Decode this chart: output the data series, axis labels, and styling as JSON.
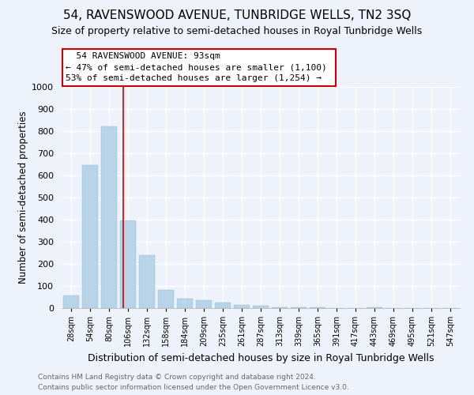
{
  "title": "54, RAVENSWOOD AVENUE, TUNBRIDGE WELLS, TN2 3SQ",
  "subtitle": "Size of property relative to semi-detached houses in Royal Tunbridge Wells",
  "bar_labels": [
    "28sqm",
    "54sqm",
    "80sqm",
    "106sqm",
    "132sqm",
    "158sqm",
    "184sqm",
    "209sqm",
    "235sqm",
    "261sqm",
    "287sqm",
    "313sqm",
    "339sqm",
    "365sqm",
    "391sqm",
    "417sqm",
    "443sqm",
    "469sqm",
    "495sqm",
    "521sqm",
    "547sqm"
  ],
  "bar_values": [
    58,
    648,
    820,
    397,
    240,
    82,
    42,
    37,
    25,
    13,
    10,
    4,
    3,
    2,
    1,
    0,
    2,
    0,
    0,
    0,
    1
  ],
  "bar_color": "#b8d4e8",
  "vline_x": 2.75,
  "vline_color": "#cc0000",
  "ylabel": "Number of semi-detached properties",
  "xlabel": "Distribution of semi-detached houses by size in Royal Tunbridge Wells",
  "ylim": [
    0,
    1000
  ],
  "yticks": [
    0,
    100,
    200,
    300,
    400,
    500,
    600,
    700,
    800,
    900,
    1000
  ],
  "annotation_title": "54 RAVENSWOOD AVENUE: 93sqm",
  "annotation_line1": "← 47% of semi-detached houses are smaller (1,100)",
  "annotation_line2": "53% of semi-detached houses are larger (1,254) →",
  "annotation_box_color": "#ffffff",
  "annotation_box_edge": "#cc0000",
  "footer_line1": "Contains HM Land Registry data © Crown copyright and database right 2024.",
  "footer_line2": "Contains public sector information licensed under the Open Government Licence v3.0.",
  "background_color": "#eef2fb",
  "grid_color": "#ffffff",
  "title_fontsize": 11,
  "subtitle_fontsize": 9,
  "xlabel_fontsize": 9,
  "ylabel_fontsize": 8.5
}
